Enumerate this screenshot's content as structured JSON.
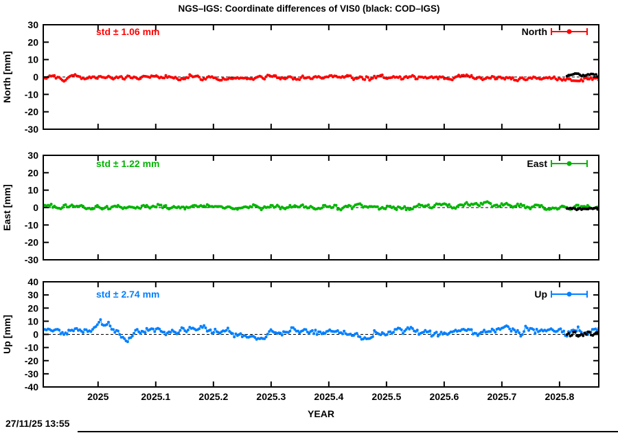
{
  "title": "NGS–IGS: Coordinate differences of VIS0 (black: COD–IGS)",
  "timestamp": "27/11/25 13:55",
  "chart_data": {
    "type": "scatter",
    "title": "NGS–IGS: Coordinate differences of VIS0 (black: COD–IGS)",
    "xlabel": "YEAR",
    "xlim": [
      2024.905,
      2025.868
    ],
    "xticks": [
      2025,
      2025.1,
      2025.2,
      2025.3,
      2025.4,
      2025.5,
      2025.6,
      2025.7,
      2025.8
    ],
    "xtick_labels": [
      "2025",
      "2025.1",
      "2025.2",
      "2025.3",
      "2025.4",
      "2025.5",
      "2025.6",
      "2025.7",
      "2025.8"
    ],
    "grid": false,
    "zero_line_style": "dashed",
    "legend_position": "top-right-inside",
    "point_style": "filled-circle-with-line",
    "panels": [
      {
        "name": "North",
        "ylabel": "North [mm]",
        "ylim": [
          -30,
          30
        ],
        "ytick_step": 10,
        "std_label": "std ± 1.06 mm",
        "legend_label": "North",
        "color": "#ff0000",
        "series": [
          {
            "name": "NGS–IGS",
            "color": "#ff0000",
            "x_start": 2024.905,
            "x_end": 2025.868,
            "n": 350,
            "noise_std_mm": 0.7,
            "seed": 101,
            "keypoints_mm": [
              [
                2024.905,
                -0.4
              ],
              [
                2024.95,
                -0.2
              ],
              [
                2025.0,
                -0.3
              ],
              [
                2025.05,
                -0.5
              ],
              [
                2025.1,
                0.0
              ],
              [
                2025.15,
                -0.4
              ],
              [
                2025.2,
                -0.1
              ],
              [
                2025.25,
                -0.4
              ],
              [
                2025.3,
                -0.2
              ],
              [
                2025.35,
                -0.4
              ],
              [
                2025.4,
                -0.5
              ],
              [
                2025.45,
                -0.2
              ],
              [
                2025.5,
                -0.4
              ],
              [
                2025.55,
                -0.2
              ],
              [
                2025.6,
                -0.3
              ],
              [
                2025.65,
                0.0
              ],
              [
                2025.7,
                -0.5
              ],
              [
                2025.75,
                -0.3
              ],
              [
                2025.8,
                -0.7
              ],
              [
                2025.83,
                -1.3
              ],
              [
                2025.868,
                -1.0
              ]
            ]
          },
          {
            "name": "COD–IGS",
            "color": "#000000",
            "x_start": 2025.813,
            "x_end": 2025.866,
            "n": 20,
            "noise_std_mm": 0.5,
            "seed": 102,
            "keypoints_mm": [
              [
                2025.813,
                0.8
              ],
              [
                2025.83,
                1.5
              ],
              [
                2025.85,
                1.4
              ],
              [
                2025.866,
                0.6
              ]
            ]
          }
        ]
      },
      {
        "name": "East",
        "ylabel": "East [mm]",
        "ylim": [
          -30,
          30
        ],
        "ytick_step": 10,
        "std_label": "std ± 1.22 mm",
        "legend_label": "East",
        "color": "#00b400",
        "series": [
          {
            "name": "NGS–IGS",
            "color": "#00b400",
            "x_start": 2024.905,
            "x_end": 2025.868,
            "n": 350,
            "noise_std_mm": 0.8,
            "seed": 103,
            "keypoints_mm": [
              [
                2024.905,
                -0.2
              ],
              [
                2024.95,
                0.2
              ],
              [
                2025.0,
                0.3
              ],
              [
                2025.05,
                0.1
              ],
              [
                2025.1,
                0.4
              ],
              [
                2025.15,
                0.1
              ],
              [
                2025.2,
                0.5
              ],
              [
                2025.25,
                0.2
              ],
              [
                2025.3,
                0.4
              ],
              [
                2025.35,
                0.5
              ],
              [
                2025.4,
                0.3
              ],
              [
                2025.45,
                0.6
              ],
              [
                2025.5,
                0.3
              ],
              [
                2025.55,
                0.7
              ],
              [
                2025.6,
                0.9
              ],
              [
                2025.65,
                1.8
              ],
              [
                2025.68,
                1.1
              ],
              [
                2025.7,
                0.8
              ],
              [
                2025.75,
                0.5
              ],
              [
                2025.8,
                0.2
              ],
              [
                2025.84,
                -0.4
              ],
              [
                2025.868,
                -0.2
              ]
            ]
          },
          {
            "name": "COD–IGS",
            "color": "#000000",
            "x_start": 2025.813,
            "x_end": 2025.866,
            "n": 20,
            "noise_std_mm": 0.5,
            "seed": 104,
            "keypoints_mm": [
              [
                2025.813,
                -0.6
              ],
              [
                2025.83,
                -1.2
              ],
              [
                2025.85,
                -0.9
              ],
              [
                2025.866,
                -0.4
              ]
            ]
          }
        ]
      },
      {
        "name": "Up",
        "ylabel": "Up [mm]",
        "ylim": [
          -40,
          40
        ],
        "ytick_step": 10,
        "std_label": "std ± 2.74 mm",
        "legend_label": "Up",
        "color": "#0080ff",
        "series": [
          {
            "name": "NGS–IGS",
            "color": "#0080ff",
            "x_start": 2024.905,
            "x_end": 2025.868,
            "n": 350,
            "noise_std_mm": 1.6,
            "seed": 105,
            "keypoints_mm": [
              [
                2024.905,
                4.5
              ],
              [
                2024.93,
                3.0
              ],
              [
                2024.96,
                1.5
              ],
              [
                2024.99,
                4.5
              ],
              [
                2025.002,
                9.5
              ],
              [
                2025.015,
                5.5
              ],
              [
                2025.03,
                0.5
              ],
              [
                2025.045,
                -3.5
              ],
              [
                2025.06,
                0.5
              ],
              [
                2025.08,
                2.5
              ],
              [
                2025.1,
                6.0
              ],
              [
                2025.12,
                3.0
              ],
              [
                2025.15,
                2.5
              ],
              [
                2025.17,
                4.5
              ],
              [
                2025.2,
                2.0
              ],
              [
                2025.23,
                3.5
              ],
              [
                2025.26,
                -0.5
              ],
              [
                2025.285,
                -2.5
              ],
              [
                2025.31,
                2.0
              ],
              [
                2025.34,
                4.0
              ],
              [
                2025.37,
                2.0
              ],
              [
                2025.4,
                3.0
              ],
              [
                2025.43,
                1.5
              ],
              [
                2025.46,
                -1.0
              ],
              [
                2025.5,
                2.5
              ],
              [
                2025.53,
                4.5
              ],
              [
                2025.56,
                2.0
              ],
              [
                2025.6,
                3.0
              ],
              [
                2025.63,
                1.5
              ],
              [
                2025.66,
                2.5
              ],
              [
                2025.7,
                3.5
              ],
              [
                2025.73,
                2.0
              ],
              [
                2025.76,
                3.0
              ],
              [
                2025.79,
                2.5
              ],
              [
                2025.82,
                1.5
              ],
              [
                2025.85,
                3.0
              ],
              [
                2025.868,
                3.5
              ]
            ]
          },
          {
            "name": "COD–IGS",
            "color": "#000000",
            "x_start": 2025.813,
            "x_end": 2025.866,
            "n": 20,
            "noise_std_mm": 1.4,
            "seed": 106,
            "keypoints_mm": [
              [
                2025.813,
                1.0
              ],
              [
                2025.828,
                -0.5
              ],
              [
                2025.843,
                2.0
              ],
              [
                2025.858,
                0.5
              ],
              [
                2025.866,
                2.5
              ]
            ]
          }
        ]
      }
    ]
  }
}
